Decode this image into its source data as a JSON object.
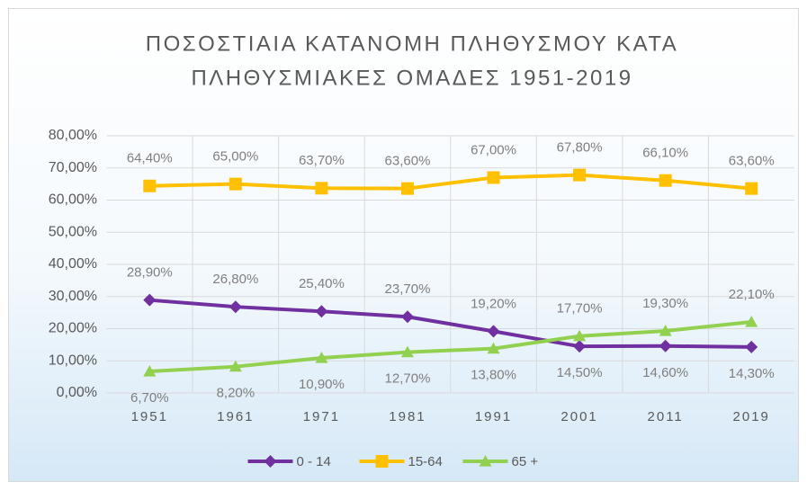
{
  "chart_data": {
    "type": "line",
    "title": [
      "ΠΟΣΟΣΤΙΑΙΑ ΚΑΤΑΝΟΜΗ ΠΛΗΘΥΣΜΟΥ ΚΑΤΑ",
      "ΠΛΗΘΥΣΜΙΑΚΕΣ ΟΜΑΔΕΣ 1951-2019"
    ],
    "categories": [
      "1951",
      "1961",
      "1971",
      "1981",
      "1991",
      "2001",
      "2011",
      "2019"
    ],
    "series": [
      {
        "name": "0 - 14",
        "color": "#7030a0",
        "marker": "diamond",
        "values": [
          28.9,
          26.8,
          25.4,
          23.7,
          19.2,
          14.5,
          14.6,
          14.3
        ],
        "value_labels": [
          "28,90%",
          "26,80%",
          "25,40%",
          "23,70%",
          "19,20%",
          "14,50%",
          "14,60%",
          "14,30%"
        ]
      },
      {
        "name": "15-64",
        "color": "#ffc000",
        "marker": "square",
        "values": [
          64.4,
          65.0,
          63.7,
          63.6,
          67.0,
          67.8,
          66.1,
          63.6
        ],
        "value_labels": [
          "64,40%",
          "65,00%",
          "63,70%",
          "63,60%",
          "67,00%",
          "67,80%",
          "66,10%",
          "63,60%"
        ]
      },
      {
        "name": "65 +",
        "color": "#92d050",
        "marker": "triangle",
        "values": [
          6.7,
          8.2,
          10.9,
          12.7,
          13.8,
          17.7,
          19.3,
          22.1
        ],
        "value_labels": [
          "6,70%",
          "8,20%",
          "10,90%",
          "12,70%",
          "13,80%",
          "17,70%",
          "19,30%",
          "22,10%"
        ]
      }
    ],
    "ylim": [
      0,
      80
    ],
    "yticks": [
      {
        "value": 0,
        "label": "0,00%"
      },
      {
        "value": 10,
        "label": "10,00%"
      },
      {
        "value": 20,
        "label": "20,00%"
      },
      {
        "value": 30,
        "label": "30,00%"
      },
      {
        "value": 40,
        "label": "40,00%"
      },
      {
        "value": 50,
        "label": "50,00%"
      },
      {
        "value": 60,
        "label": "60,00%"
      },
      {
        "value": 70,
        "label": "70,00%"
      },
      {
        "value": 80,
        "label": "80,00%"
      }
    ],
    "grid": true,
    "legend": "bottom"
  }
}
